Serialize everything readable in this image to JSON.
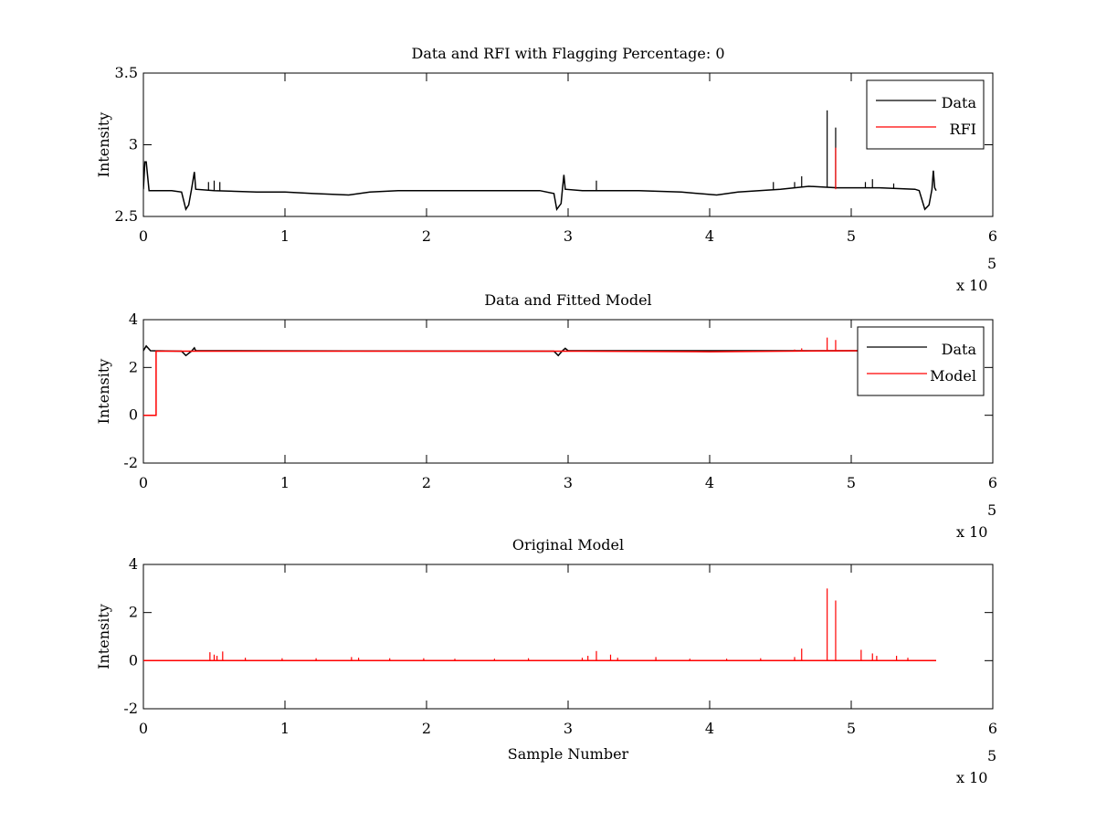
{
  "figure": {
    "background": "#ffffff"
  },
  "chart_data": [
    {
      "type": "line",
      "title": "Data and RFI with Flagging Percentage: 0",
      "xlabel": "",
      "ylabel": "Intensity",
      "xlim": [
        0,
        6
      ],
      "ylim": [
        2.5,
        3.5
      ],
      "xticks": [
        "0",
        "1",
        "2",
        "3",
        "4",
        "5",
        "6"
      ],
      "yticks": [
        "2.5",
        "3",
        "3.5"
      ],
      "x_multiplier": {
        "base": "x 10",
        "exponent": "5"
      },
      "legend": {
        "position": "top-right",
        "entries": [
          "Data",
          "RFI"
        ]
      },
      "series": [
        {
          "name": "Data",
          "color": "#000000",
          "points": [
            [
              0,
              2.69
            ],
            [
              0.01,
              2.88
            ],
            [
              0.02,
              2.88
            ],
            [
              0.04,
              2.68
            ],
            [
              0.1,
              2.68
            ],
            [
              0.2,
              2.68
            ],
            [
              0.27,
              2.67
            ],
            [
              0.3,
              2.55
            ],
            [
              0.32,
              2.58
            ],
            [
              0.34,
              2.69
            ],
            [
              0.36,
              2.81
            ],
            [
              0.37,
              2.69
            ],
            [
              0.5,
              2.68
            ],
            [
              0.8,
              2.67
            ],
            [
              1.0,
              2.67
            ],
            [
              1.2,
              2.66
            ],
            [
              1.45,
              2.65
            ],
            [
              1.6,
              2.67
            ],
            [
              1.8,
              2.68
            ],
            [
              2.0,
              2.68
            ],
            [
              2.5,
              2.68
            ],
            [
              2.8,
              2.68
            ],
            [
              2.9,
              2.66
            ],
            [
              2.92,
              2.55
            ],
            [
              2.95,
              2.59
            ],
            [
              2.96,
              2.69
            ],
            [
              2.97,
              2.79
            ],
            [
              2.98,
              2.69
            ],
            [
              3.1,
              2.68
            ],
            [
              3.5,
              2.68
            ],
            [
              3.8,
              2.67
            ],
            [
              4.05,
              2.65
            ],
            [
              4.2,
              2.67
            ],
            [
              4.5,
              2.69
            ],
            [
              4.7,
              2.71
            ],
            [
              4.9,
              2.7
            ],
            [
              5.2,
              2.7
            ],
            [
              5.45,
              2.69
            ],
            [
              5.48,
              2.68
            ],
            [
              5.52,
              2.55
            ],
            [
              5.55,
              2.58
            ],
            [
              5.57,
              2.69
            ],
            [
              5.58,
              2.82
            ],
            [
              5.59,
              2.7
            ],
            [
              5.6,
              2.68
            ]
          ],
          "spikes": [
            [
              0.46,
              2.74
            ],
            [
              0.5,
              2.75
            ],
            [
              0.54,
              2.74
            ],
            [
              3.2,
              2.75
            ],
            [
              4.45,
              2.74
            ],
            [
              4.6,
              2.74
            ],
            [
              4.65,
              2.78
            ],
            [
              4.83,
              3.24
            ],
            [
              4.89,
              3.12
            ],
            [
              5.1,
              2.74
            ],
            [
              5.15,
              2.76
            ],
            [
              5.3,
              2.73
            ]
          ]
        },
        {
          "name": "RFI",
          "color": "#ff0000",
          "points": [],
          "spikes": [
            [
              4.89,
              2.98
            ]
          ]
        }
      ]
    },
    {
      "type": "line",
      "title": "Data and Fitted Model",
      "xlabel": "",
      "ylabel": "Intensity",
      "xlim": [
        0,
        6
      ],
      "ylim": [
        -2,
        4
      ],
      "xticks": [
        "0",
        "1",
        "2",
        "3",
        "4",
        "5",
        "6"
      ],
      "yticks": [
        "-2",
        "0",
        "2",
        "4"
      ],
      "x_multiplier": {
        "base": "x 10",
        "exponent": "5"
      },
      "legend": {
        "position": "top-right",
        "entries": [
          "Data",
          "Model"
        ]
      },
      "series": [
        {
          "name": "Data",
          "color": "#000000",
          "points": [
            [
              0,
              2.7
            ],
            [
              0.02,
              2.9
            ],
            [
              0.05,
              2.7
            ],
            [
              0.27,
              2.68
            ],
            [
              0.3,
              2.5
            ],
            [
              0.34,
              2.68
            ],
            [
              0.36,
              2.82
            ],
            [
              0.37,
              2.7
            ],
            [
              2.9,
              2.68
            ],
            [
              2.93,
              2.5
            ],
            [
              2.96,
              2.7
            ],
            [
              2.98,
              2.8
            ],
            [
              3.0,
              2.7
            ],
            [
              5.6,
              2.7
            ]
          ],
          "spikes": []
        },
        {
          "name": "Model",
          "color": "#ff0000",
          "points": [
            [
              0,
              0
            ],
            [
              0.09,
              0
            ],
            [
              0.09,
              2.68
            ],
            [
              1.0,
              2.68
            ],
            [
              2.0,
              2.68
            ],
            [
              3.0,
              2.68
            ],
            [
              4.0,
              2.66
            ],
            [
              5.0,
              2.7
            ],
            [
              5.6,
              2.7
            ]
          ],
          "spikes": [
            [
              4.6,
              2.75
            ],
            [
              4.65,
              2.8
            ],
            [
              4.83,
              3.25
            ],
            [
              4.89,
              3.15
            ],
            [
              5.15,
              2.76
            ]
          ]
        }
      ]
    },
    {
      "type": "line",
      "title": "Original Model",
      "xlabel": "Sample Number",
      "ylabel": "Intensity",
      "xlim": [
        0,
        6
      ],
      "ylim": [
        -2,
        4
      ],
      "xticks": [
        "0",
        "1",
        "2",
        "3",
        "4",
        "5",
        "6"
      ],
      "yticks": [
        "-2",
        "0",
        "2",
        "4"
      ],
      "x_multiplier": {
        "base": "x 10",
        "exponent": "5"
      },
      "legend": null,
      "series": [
        {
          "name": "",
          "color": "#ff0000",
          "points": [
            [
              0,
              0
            ],
            [
              5.6,
              0
            ]
          ],
          "spikes": [
            [
              0.47,
              0.35
            ],
            [
              0.5,
              0.25
            ],
            [
              0.52,
              0.2
            ],
            [
              0.56,
              0.38
            ],
            [
              0.72,
              0.12
            ],
            [
              0.98,
              0.1
            ],
            [
              1.22,
              0.1
            ],
            [
              1.47,
              0.15
            ],
            [
              1.52,
              0.12
            ],
            [
              1.74,
              0.1
            ],
            [
              1.98,
              0.1
            ],
            [
              2.2,
              0.08
            ],
            [
              2.48,
              0.08
            ],
            [
              2.72,
              0.1
            ],
            [
              3.1,
              0.12
            ],
            [
              3.14,
              0.2
            ],
            [
              3.2,
              0.4
            ],
            [
              3.3,
              0.25
            ],
            [
              3.35,
              0.12
            ],
            [
              3.62,
              0.15
            ],
            [
              3.86,
              0.08
            ],
            [
              4.12,
              0.08
            ],
            [
              4.36,
              0.1
            ],
            [
              4.6,
              0.15
            ],
            [
              4.65,
              0.5
            ],
            [
              4.83,
              3.0
            ],
            [
              4.89,
              2.5
            ],
            [
              5.07,
              0.45
            ],
            [
              5.15,
              0.3
            ],
            [
              5.18,
              0.2
            ],
            [
              5.32,
              0.2
            ],
            [
              5.4,
              0.12
            ]
          ]
        }
      ]
    }
  ]
}
